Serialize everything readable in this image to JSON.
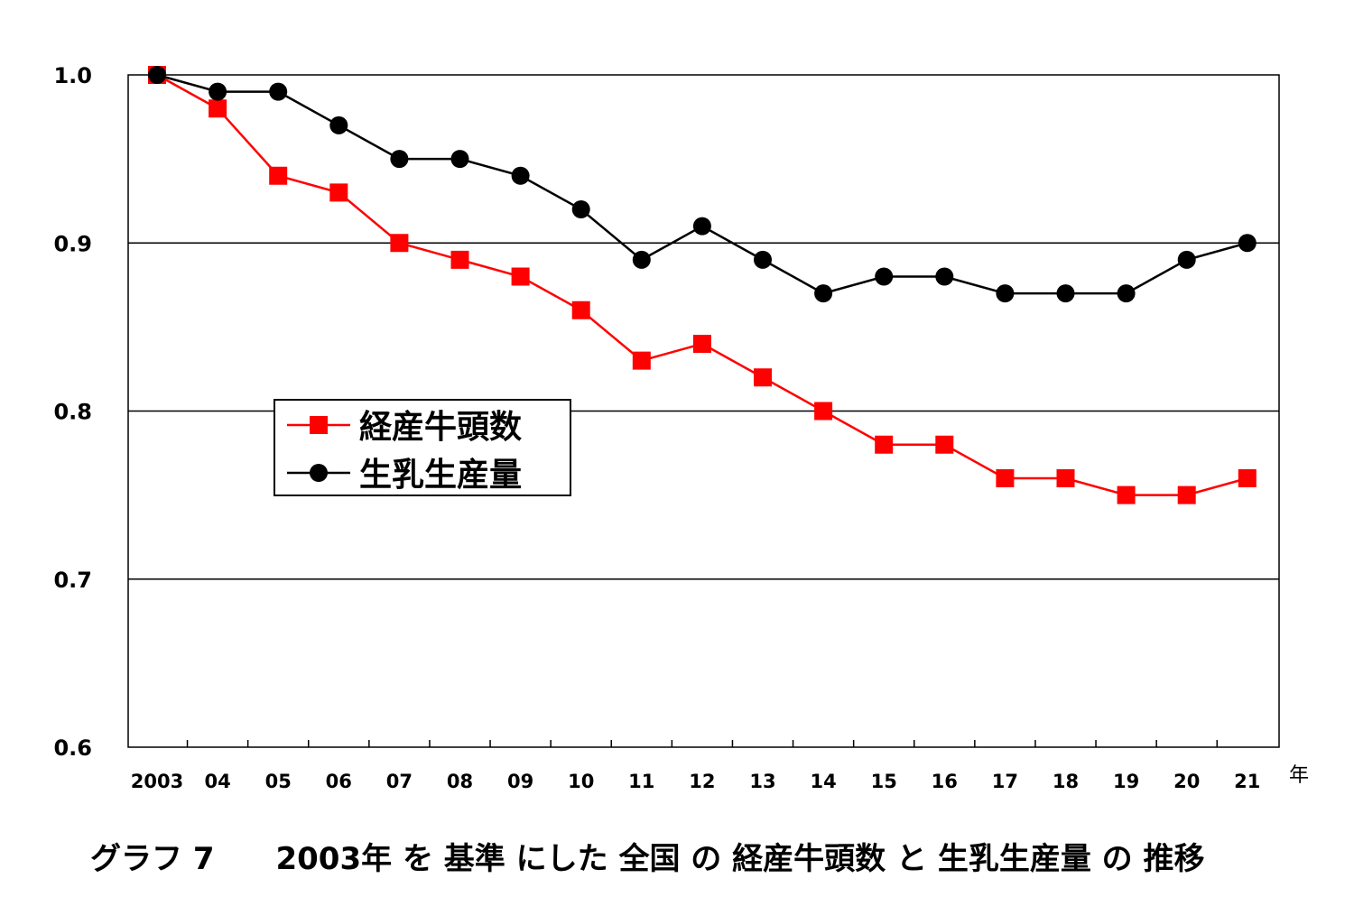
{
  "chart_data": {
    "type": "line",
    "categories": [
      "2003",
      "04",
      "05",
      "06",
      "07",
      "08",
      "09",
      "10",
      "11",
      "12",
      "13",
      "14",
      "15",
      "16",
      "17",
      "18",
      "19",
      "20",
      "21"
    ],
    "x_unit": "年",
    "ylim": [
      0.6,
      1.0
    ],
    "yticks": [
      "1.0",
      "0.9",
      "0.8",
      "0.7",
      "0.6"
    ],
    "grid": true,
    "legend_position": "center-left",
    "series": [
      {
        "name": "経産牛頭数",
        "color": "#ff0000",
        "marker": "square",
        "values": [
          1.0,
          0.98,
          0.94,
          0.93,
          0.9,
          0.89,
          0.88,
          0.86,
          0.83,
          0.84,
          0.82,
          0.8,
          0.78,
          0.78,
          0.76,
          0.76,
          0.75,
          0.75,
          0.76
        ]
      },
      {
        "name": "生乳生産量",
        "color": "#000000",
        "marker": "circle",
        "values": [
          1.0,
          0.99,
          0.99,
          0.97,
          0.95,
          0.95,
          0.94,
          0.92,
          0.89,
          0.91,
          0.89,
          0.87,
          0.88,
          0.88,
          0.87,
          0.87,
          0.87,
          0.89,
          0.9
        ]
      }
    ],
    "caption": "グラフ 7　　2003年 を 基準 にした 全国 の 経産牛頭数 と 生乳生産量 の 推移"
  }
}
